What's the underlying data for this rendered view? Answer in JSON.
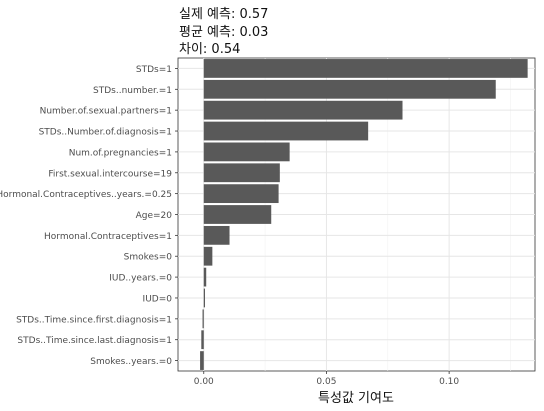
{
  "header": {
    "actual": "실제 예측: 0.57",
    "mean": "평균 예측: 0.03",
    "diff": "차이: 0.54"
  },
  "chart_data": {
    "type": "bar",
    "orientation": "horizontal",
    "title": "",
    "xlabel": "특성값 기여도",
    "ylabel": "",
    "xlim": [
      -0.0105,
      0.135
    ],
    "xticks": [
      0.0,
      0.05,
      0.1
    ],
    "xtick_labels": [
      "0.00",
      "0.05",
      "0.10"
    ],
    "grid": true,
    "bar_color": "#595959",
    "categories": [
      "STDs=1",
      "STDs..number.=1",
      "Number.of.sexual.partners=1",
      "STDs..Number.of.diagnosis=1",
      "Num.of.pregnancies=1",
      "First.sexual.intercourse=19",
      "Hormonal.Contraceptives..years.=0.25",
      "Age=20",
      "Hormonal.Contraceptives=1",
      "Smokes=0",
      "IUD..years.=0",
      "IUD=0",
      "STDs..Time.since.first.diagnosis=1",
      "STDs..Time.since.last.diagnosis=1",
      "Smokes..years.=0"
    ],
    "values": [
      0.132,
      0.119,
      0.081,
      0.067,
      0.035,
      0.031,
      0.0305,
      0.0275,
      0.0105,
      0.0035,
      0.001,
      0.0005,
      -0.0005,
      -0.001,
      -0.0015
    ]
  }
}
